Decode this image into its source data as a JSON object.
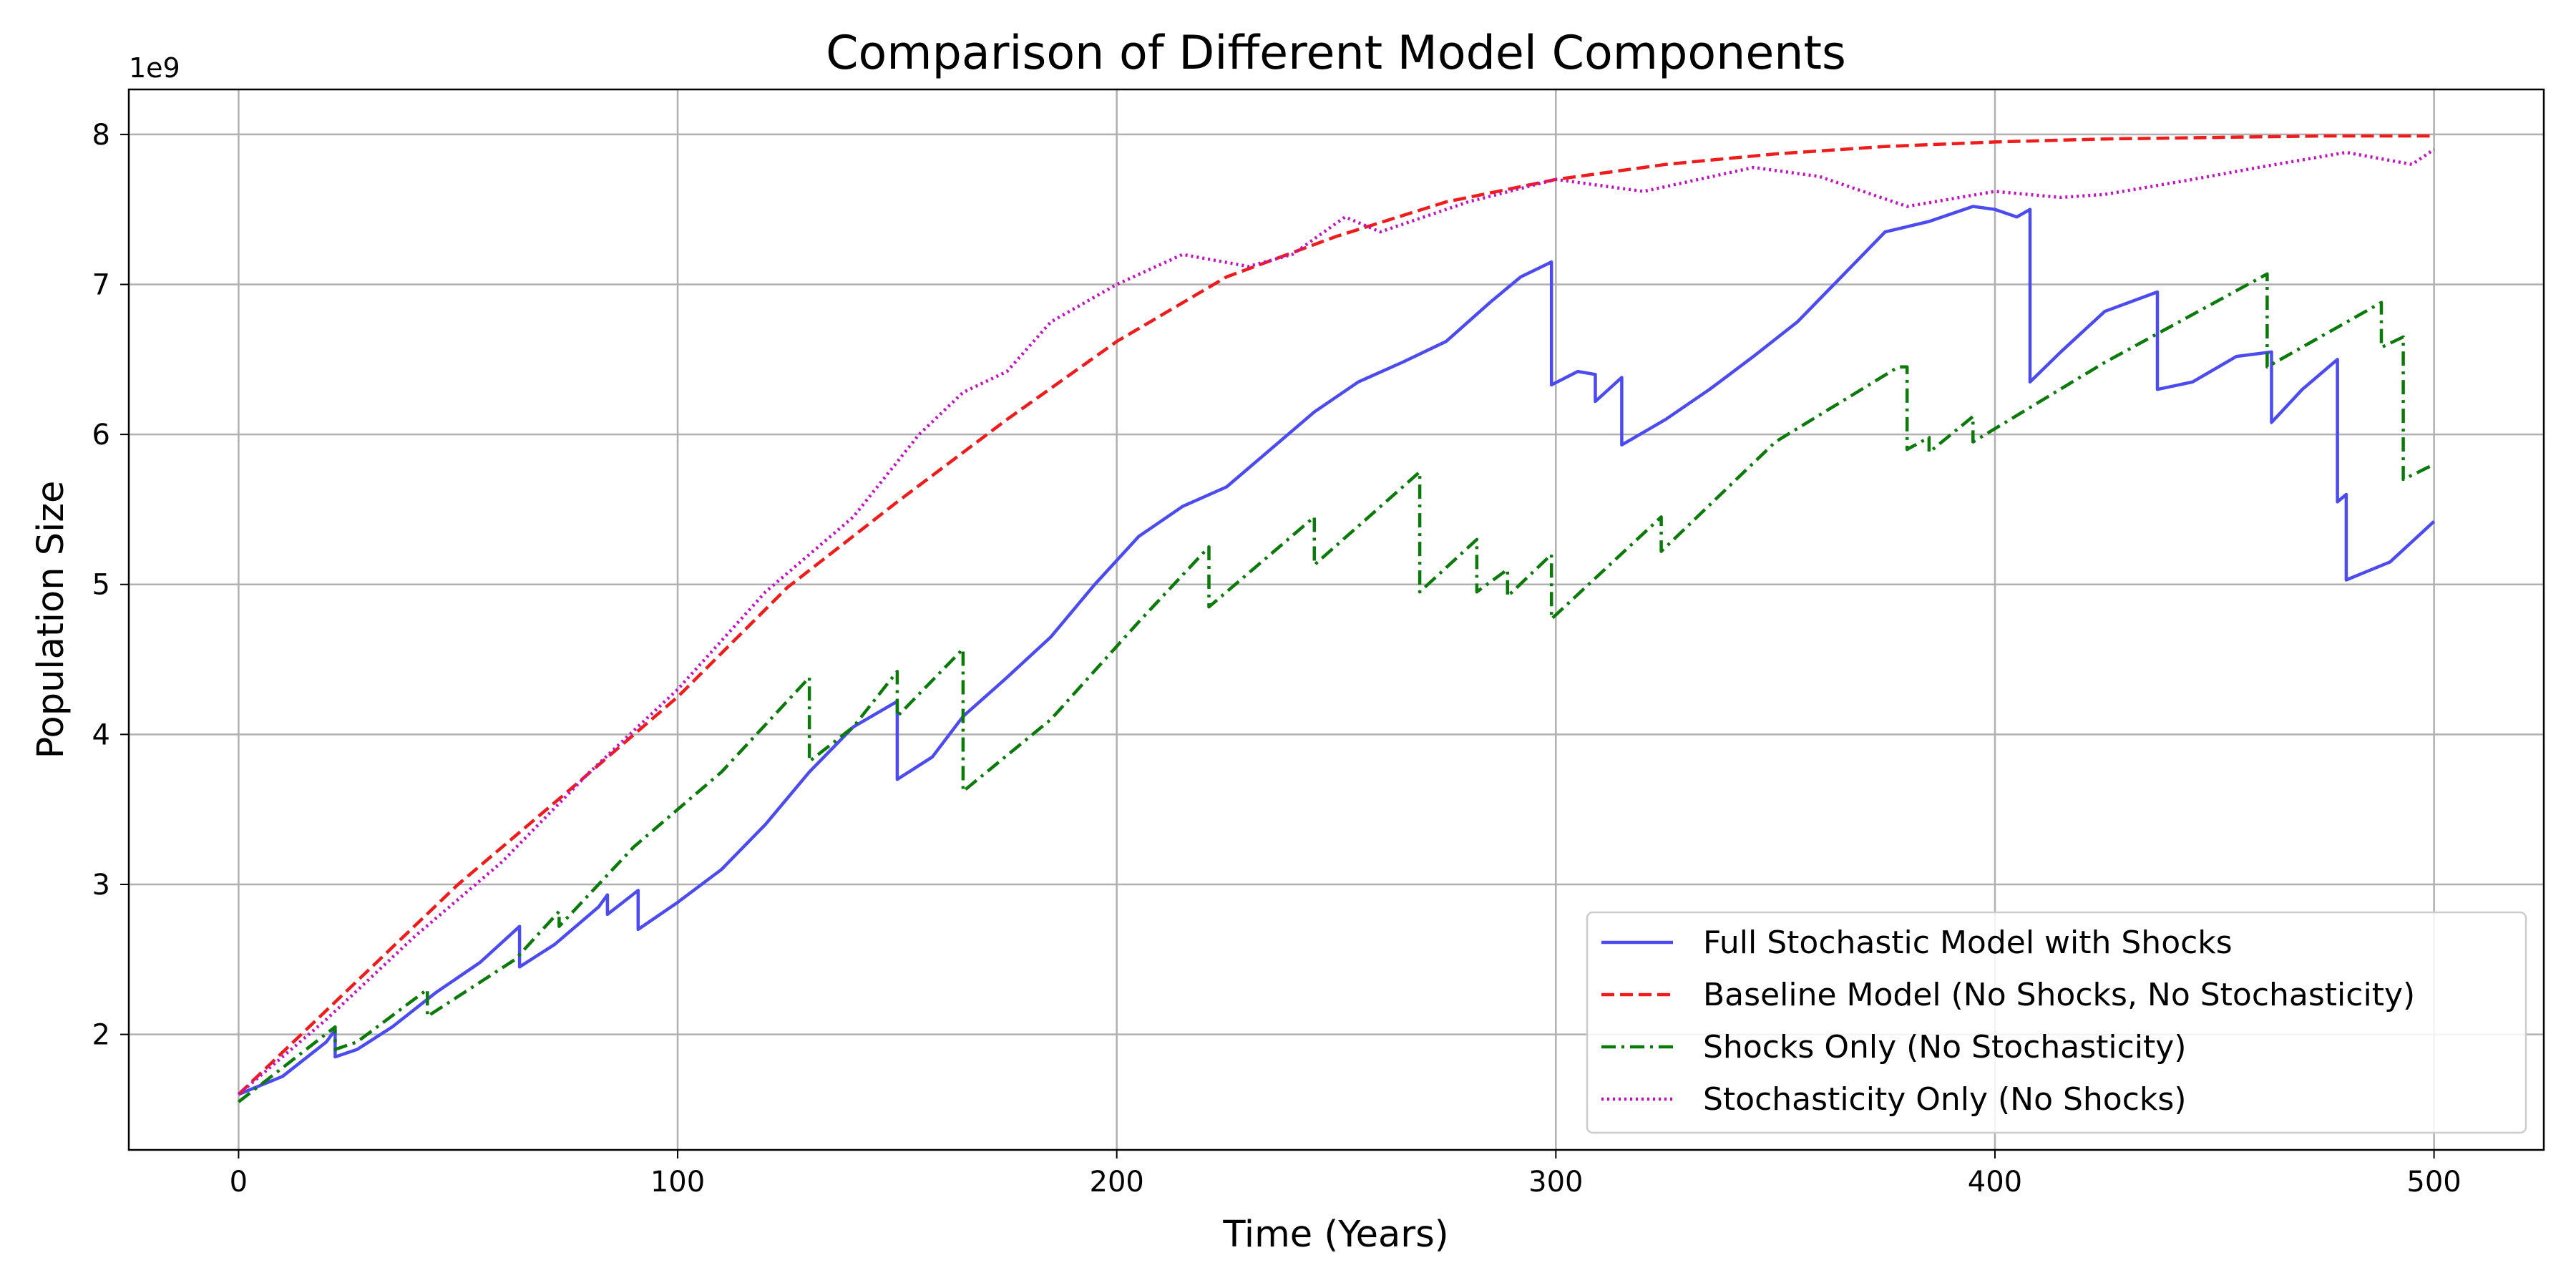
{
  "chart_data": {
    "type": "line",
    "title": "Comparison of Different Model Components",
    "xlabel": "Time (Years)",
    "ylabel": "Population Size",
    "y_offset_label": "1e9",
    "xlim": [
      -25,
      525
    ],
    "ylim": [
      1.23,
      8.3
    ],
    "x_ticks": [
      0,
      100,
      200,
      300,
      400,
      500
    ],
    "x_tick_labels": [
      "0",
      "100",
      "200",
      "300",
      "400",
      "500"
    ],
    "y_ticks": [
      2,
      3,
      4,
      5,
      6,
      7,
      8
    ],
    "y_tick_labels": [
      "2",
      "3",
      "4",
      "5",
      "6",
      "7",
      "8"
    ],
    "grid": true,
    "legend_position": "lower-right",
    "series": [
      {
        "name": "Full Stochastic Model with Shocks",
        "color": "#4b4bef",
        "style": "solid",
        "points": [
          [
            0,
            1.6
          ],
          [
            10,
            1.72
          ],
          [
            20,
            1.95
          ],
          [
            22,
            2.03
          ],
          [
            22,
            1.85
          ],
          [
            27,
            1.9
          ],
          [
            35,
            2.05
          ],
          [
            45,
            2.28
          ],
          [
            55,
            2.48
          ],
          [
            64,
            2.72
          ],
          [
            64,
            2.45
          ],
          [
            72,
            2.6
          ],
          [
            82,
            2.85
          ],
          [
            84,
            2.93
          ],
          [
            84,
            2.8
          ],
          [
            91,
            2.96
          ],
          [
            91,
            2.7
          ],
          [
            100,
            2.88
          ],
          [
            110,
            3.1
          ],
          [
            120,
            3.4
          ],
          [
            130,
            3.75
          ],
          [
            140,
            4.05
          ],
          [
            150,
            4.22
          ],
          [
            150,
            3.7
          ],
          [
            158,
            3.85
          ],
          [
            165,
            4.12
          ],
          [
            175,
            4.38
          ],
          [
            185,
            4.65
          ],
          [
            195,
            5.0
          ],
          [
            205,
            5.32
          ],
          [
            215,
            5.52
          ],
          [
            225,
            5.65
          ],
          [
            235,
            5.9
          ],
          [
            245,
            6.15
          ],
          [
            255,
            6.35
          ],
          [
            265,
            6.48
          ],
          [
            275,
            6.62
          ],
          [
            285,
            6.88
          ],
          [
            292,
            7.05
          ],
          [
            299,
            7.15
          ],
          [
            299,
            6.33
          ],
          [
            305,
            6.42
          ],
          [
            309,
            6.4
          ],
          [
            309,
            6.22
          ],
          [
            315,
            6.38
          ],
          [
            315,
            5.93
          ],
          [
            325,
            6.1
          ],
          [
            335,
            6.3
          ],
          [
            345,
            6.52
          ],
          [
            355,
            6.75
          ],
          [
            365,
            7.05
          ],
          [
            375,
            7.35
          ],
          [
            385,
            7.42
          ],
          [
            395,
            7.52
          ],
          [
            400,
            7.5
          ],
          [
            405,
            7.45
          ],
          [
            408,
            7.5
          ],
          [
            408,
            6.35
          ],
          [
            415,
            6.55
          ],
          [
            425,
            6.82
          ],
          [
            437,
            6.95
          ],
          [
            437,
            6.3
          ],
          [
            445,
            6.35
          ],
          [
            455,
            6.52
          ],
          [
            463,
            6.55
          ],
          [
            463,
            6.08
          ],
          [
            470,
            6.3
          ],
          [
            478,
            6.5
          ],
          [
            478,
            5.55
          ],
          [
            480,
            5.6
          ],
          [
            480,
            5.03
          ],
          [
            490,
            5.15
          ],
          [
            500,
            5.42
          ]
        ]
      },
      {
        "name": "Baseline Model (No Shocks, No Stochasticity)",
        "color": "#ee1c1c",
        "style": "dashed",
        "points": [
          [
            0,
            1.6
          ],
          [
            25,
            2.3
          ],
          [
            50,
            3.0
          ],
          [
            75,
            3.62
          ],
          [
            100,
            4.25
          ],
          [
            125,
            4.98
          ],
          [
            150,
            5.55
          ],
          [
            175,
            6.1
          ],
          [
            200,
            6.62
          ],
          [
            225,
            7.05
          ],
          [
            250,
            7.32
          ],
          [
            275,
            7.55
          ],
          [
            300,
            7.7
          ],
          [
            325,
            7.8
          ],
          [
            350,
            7.87
          ],
          [
            375,
            7.92
          ],
          [
            400,
            7.95
          ],
          [
            425,
            7.97
          ],
          [
            450,
            7.98
          ],
          [
            475,
            7.99
          ],
          [
            500,
            7.99
          ]
        ]
      },
      {
        "name": "Shocks Only (No Stochasticity)",
        "color": "#0b7a0b",
        "style": "dashdot",
        "points": [
          [
            0,
            1.55
          ],
          [
            22,
            2.05
          ],
          [
            22,
            1.9
          ],
          [
            27,
            1.95
          ],
          [
            43,
            2.3
          ],
          [
            43,
            2.12
          ],
          [
            63,
            2.5
          ],
          [
            73,
            2.82
          ],
          [
            73,
            2.72
          ],
          [
            90,
            3.25
          ],
          [
            110,
            3.75
          ],
          [
            130,
            4.38
          ],
          [
            130,
            3.82
          ],
          [
            140,
            4.05
          ],
          [
            150,
            4.42
          ],
          [
            150,
            4.12
          ],
          [
            165,
            4.57
          ],
          [
            165,
            3.62
          ],
          [
            185,
            4.1
          ],
          [
            205,
            4.75
          ],
          [
            221,
            5.25
          ],
          [
            221,
            4.85
          ],
          [
            245,
            5.45
          ],
          [
            245,
            5.13
          ],
          [
            269,
            5.75
          ],
          [
            269,
            4.95
          ],
          [
            282,
            5.3
          ],
          [
            282,
            4.95
          ],
          [
            289,
            5.1
          ],
          [
            289,
            4.92
          ],
          [
            299,
            5.2
          ],
          [
            299,
            4.77
          ],
          [
            324,
            5.45
          ],
          [
            324,
            5.22
          ],
          [
            350,
            5.95
          ],
          [
            378,
            6.45
          ],
          [
            380,
            6.45
          ],
          [
            380,
            5.9
          ],
          [
            385,
            5.98
          ],
          [
            385,
            5.88
          ],
          [
            395,
            6.12
          ],
          [
            395,
            5.95
          ],
          [
            425,
            6.48
          ],
          [
            462,
            7.07
          ],
          [
            462,
            6.45
          ],
          [
            488,
            6.88
          ],
          [
            488,
            6.58
          ],
          [
            493,
            6.65
          ],
          [
            493,
            5.7
          ],
          [
            500,
            5.8
          ]
        ]
      },
      {
        "name": "Stochasticity Only (No Shocks)",
        "color": "#c111c1",
        "style": "dotted",
        "points": [
          [
            0,
            1.6
          ],
          [
            20,
            2.1
          ],
          [
            40,
            2.65
          ],
          [
            60,
            3.15
          ],
          [
            80,
            3.75
          ],
          [
            100,
            4.3
          ],
          [
            120,
            4.95
          ],
          [
            140,
            5.45
          ],
          [
            155,
            6.0
          ],
          [
            165,
            6.28
          ],
          [
            175,
            6.42
          ],
          [
            185,
            6.75
          ],
          [
            200,
            7.0
          ],
          [
            215,
            7.2
          ],
          [
            230,
            7.12
          ],
          [
            240,
            7.2
          ],
          [
            252,
            7.45
          ],
          [
            260,
            7.35
          ],
          [
            280,
            7.55
          ],
          [
            300,
            7.7
          ],
          [
            320,
            7.62
          ],
          [
            345,
            7.78
          ],
          [
            360,
            7.72
          ],
          [
            380,
            7.52
          ],
          [
            400,
            7.62
          ],
          [
            415,
            7.58
          ],
          [
            425,
            7.6
          ],
          [
            445,
            7.7
          ],
          [
            460,
            7.78
          ],
          [
            480,
            7.88
          ],
          [
            495,
            7.8
          ],
          [
            500,
            7.9
          ]
        ]
      }
    ]
  }
}
